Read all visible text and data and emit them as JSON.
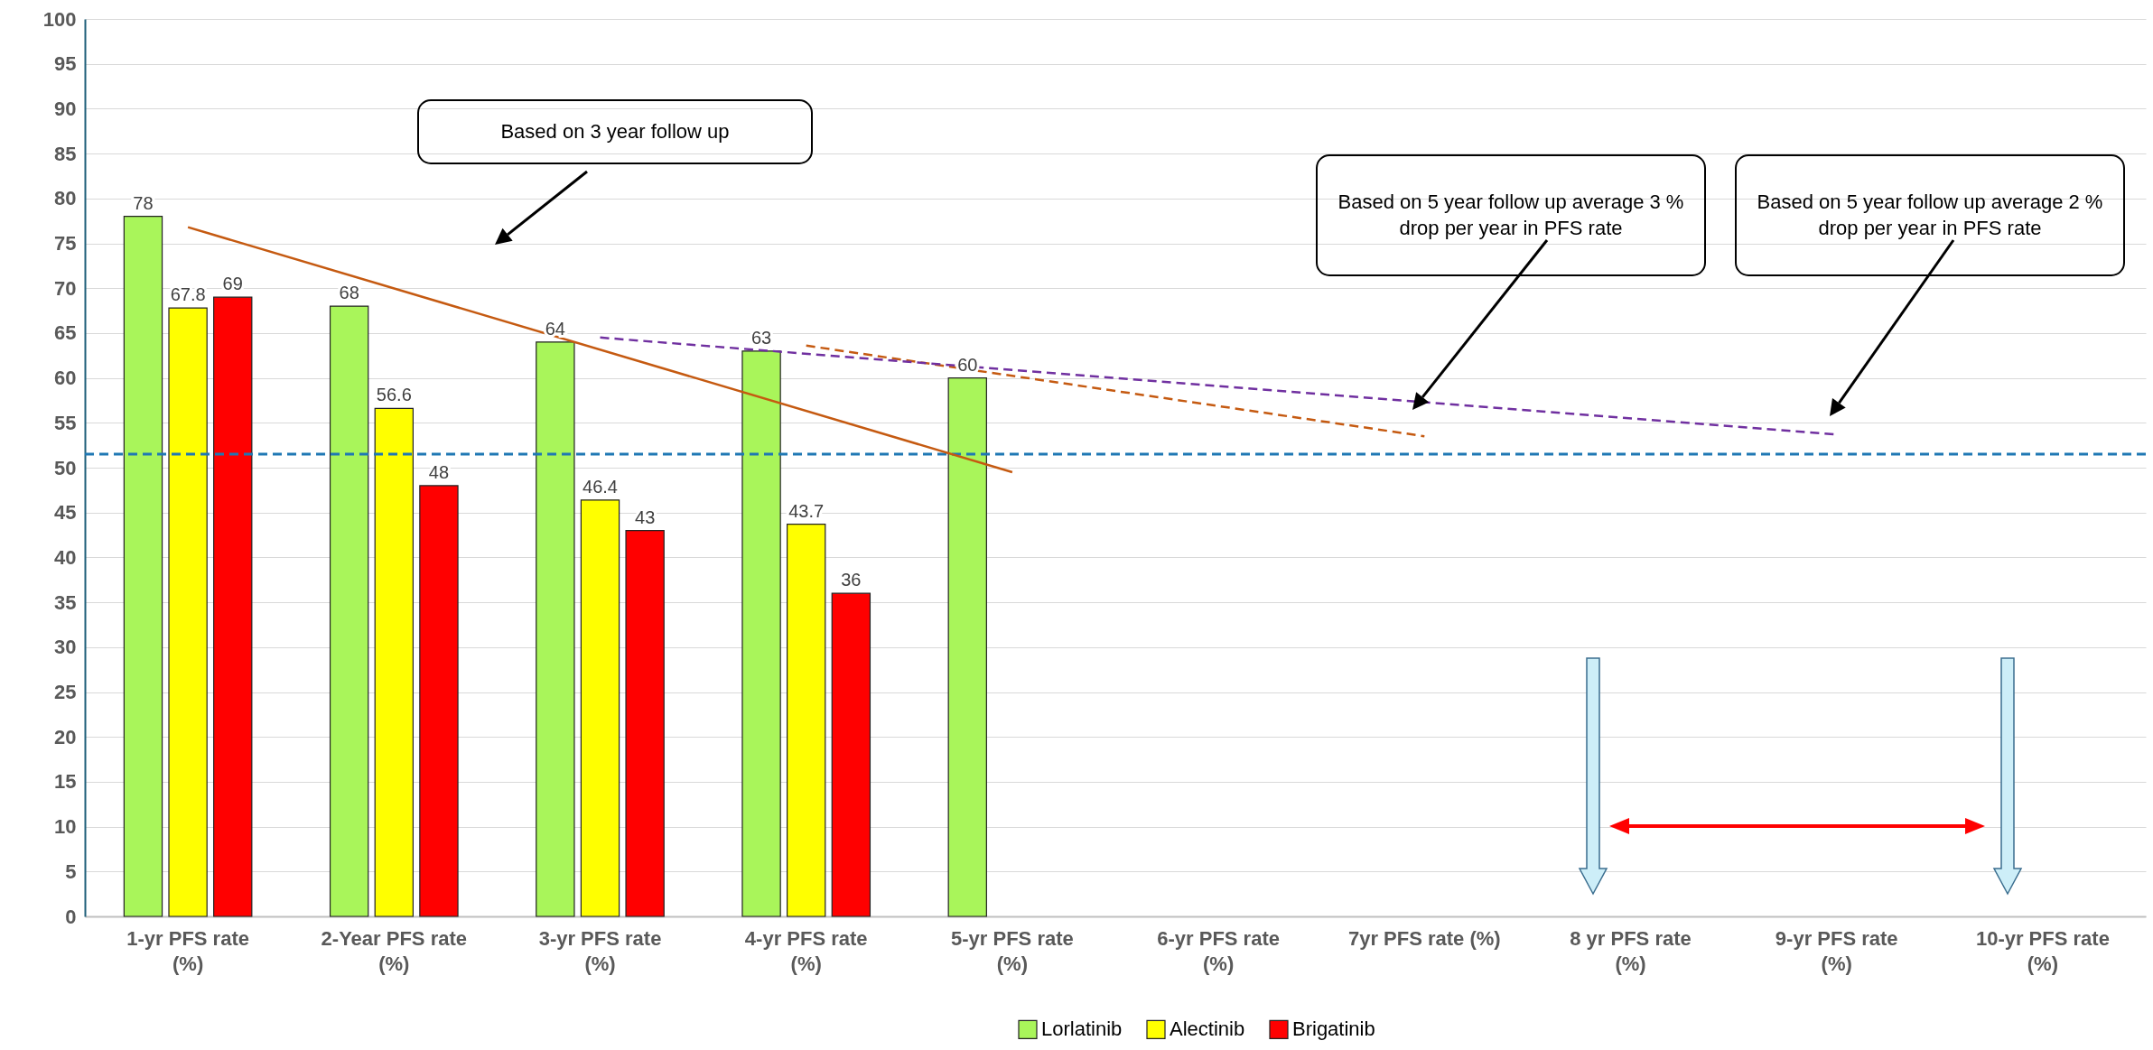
{
  "chart_data": {
    "type": "bar",
    "categories": [
      "1-yr PFS rate (%)",
      "2-Year PFS rate (%)",
      "3-yr PFS rate (%)",
      "4-yr PFS rate (%)",
      "5-yr PFS rate (%)",
      "6-yr PFS rate (%)",
      "7yr PFS rate (%)",
      "8 yr PFS rate (%)",
      "9-yr PFS rate (%)",
      "10-yr PFS rate (%)"
    ],
    "series": [
      {
        "name": "Lorlatinib",
        "color": "#a9f55a",
        "values": [
          78,
          68,
          64,
          63,
          60,
          null,
          null,
          null,
          null,
          null
        ],
        "value_labels": [
          "78",
          "68",
          "64",
          "63",
          "60",
          null,
          null,
          null,
          null,
          null
        ]
      },
      {
        "name": "Alectinib",
        "color": "#ffff00",
        "values": [
          67.8,
          56.6,
          46.4,
          43.7,
          null,
          null,
          null,
          null,
          null,
          null
        ],
        "value_labels": [
          "67.8",
          "56.6",
          "46.4",
          "43.7",
          null,
          null,
          null,
          null,
          null,
          null
        ]
      },
      {
        "name": "Brigatinib",
        "color": "#ff0000",
        "values": [
          69,
          48,
          43,
          36,
          null,
          null,
          null,
          null,
          null,
          null
        ],
        "value_labels": [
          "69",
          "48",
          "43",
          "36",
          null,
          null,
          null,
          null,
          null,
          null
        ]
      },
      {
        "type": "line",
        "color": "#c55a11",
        "line_style": "solid",
        "x": [
          "1-yr PFS rate (%)",
          "5-yr PFS rate (%)"
        ],
        "values": [
          76.8,
          49.5
        ]
      },
      {
        "type": "line",
        "color": "#c55a11",
        "line_style": "dashed",
        "x": [
          "4-yr PFS rate (%)",
          "7yr PFS rate (%)"
        ],
        "values": [
          63.6,
          53.5
        ]
      },
      {
        "type": "line",
        "color": "#7030a0",
        "line_style": "dashed",
        "x": [
          "3-yr PFS rate (%)",
          "9-yr PFS rate (%)"
        ],
        "values": [
          64.5,
          53.7
        ]
      }
    ],
    "ylim": [
      0,
      100
    ],
    "yticks": [
      0,
      5,
      10,
      15,
      20,
      25,
      30,
      35,
      40,
      45,
      50,
      55,
      60,
      65,
      70,
      75,
      80,
      85,
      90,
      95,
      100
    ],
    "grid": "y",
    "legend": "bottom",
    "ref_lines": [
      {
        "axis": "y",
        "value": 51.5,
        "color": "#1f78b4",
        "line_style": "dashed"
      }
    ],
    "annotations": [
      "Based on 3 year follow up",
      "Based on 5 year follow up average 3 % drop per year in PFS rate",
      "Based on 5 year follow up average 2 % drop per year in PFS rate"
    ]
  }
}
